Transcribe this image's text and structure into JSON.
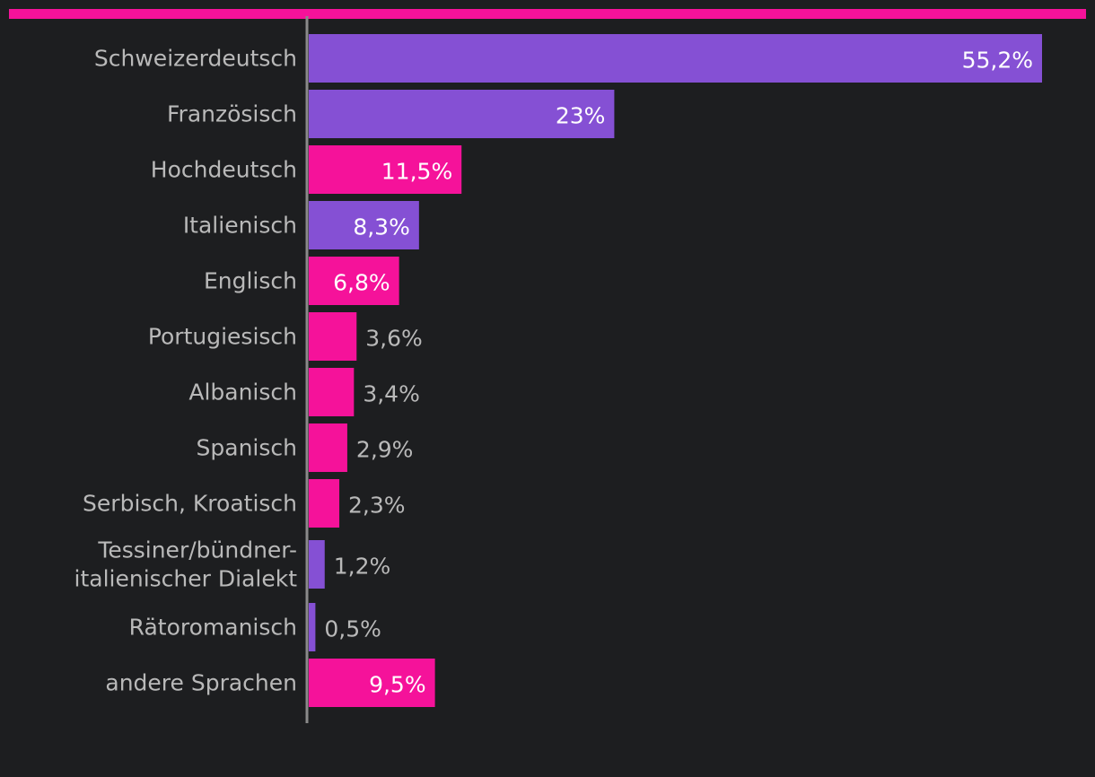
{
  "accent_color": "#f5129a",
  "chart_data": {
    "type": "bar",
    "orientation": "horizontal",
    "title": "",
    "xlabel": "",
    "ylabel": "",
    "grid": false,
    "legend": "none",
    "xlim": [
      0,
      60
    ],
    "colors": {
      "purple": "#8550d4",
      "pink": "#f5129a",
      "axis": "#8a8a8a",
      "label_outside": "#b9b9b9",
      "label_inside": "#ffffff"
    },
    "categories": [
      [
        "Schweizerdeutsch"
      ],
      [
        "Französisch"
      ],
      [
        "Hochdeutsch"
      ],
      [
        "Italienisch"
      ],
      [
        "Englisch"
      ],
      [
        "Portugiesisch"
      ],
      [
        "Albanisch"
      ],
      [
        "Spanisch"
      ],
      [
        "Serbisch, Kroatisch"
      ],
      [
        "Tessiner/bündner-",
        "italienischer Dialekt"
      ],
      [
        "Rätoromanisch"
      ],
      [
        "andere Sprachen"
      ]
    ],
    "values": [
      55.2,
      23,
      11.5,
      8.3,
      6.8,
      3.6,
      3.4,
      2.9,
      2.3,
      1.2,
      0.5,
      9.5
    ],
    "value_labels": [
      "55,2%",
      "23%",
      "11,5%",
      "8,3%",
      "6,8%",
      "3,6%",
      "3,4%",
      "2,9%",
      "2,3%",
      "1,2%",
      "0,5%",
      "9,5%"
    ],
    "bar_colors": [
      "purple",
      "purple",
      "pink",
      "purple",
      "pink",
      "pink",
      "pink",
      "pink",
      "pink",
      "purple",
      "purple",
      "pink"
    ]
  }
}
